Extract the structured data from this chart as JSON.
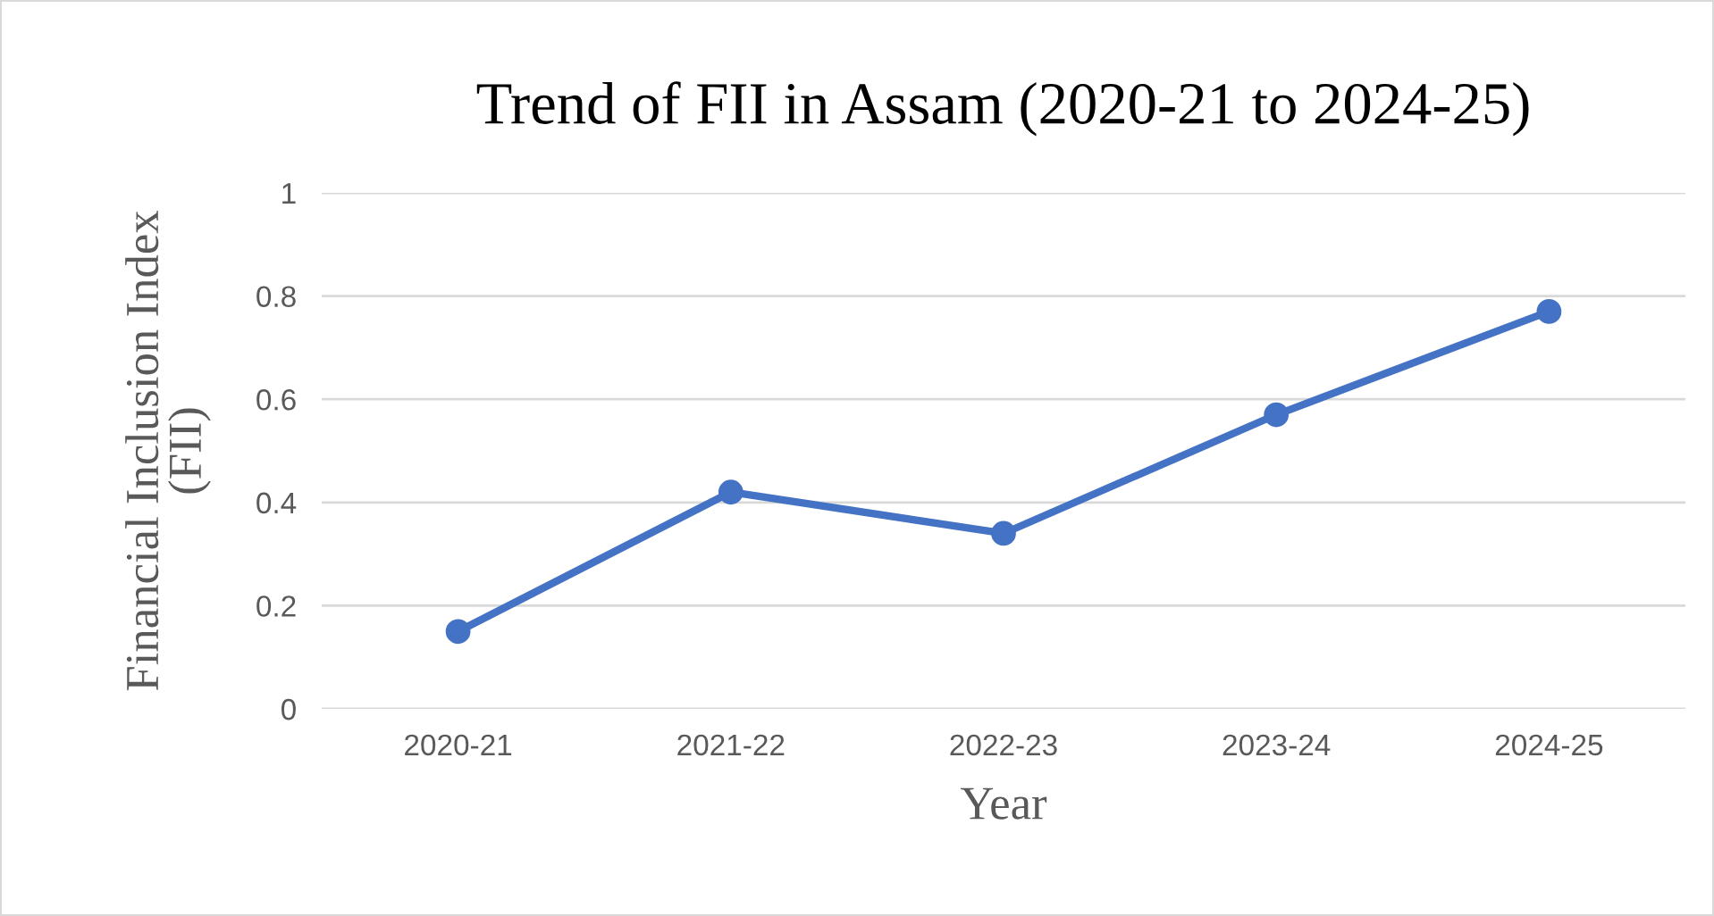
{
  "chart_data": {
    "type": "line",
    "title": "Trend of FII in Assam (2020-21 to 2024-25)",
    "xlabel": "Year",
    "ylabel": "Financial Inclusion Index (FII)",
    "categories": [
      "2020-21",
      "2021-22",
      "2022-23",
      "2023-24",
      "2024-25"
    ],
    "series": [
      {
        "color": "#4472c4",
        "values": [
          0.15,
          0.42,
          0.34,
          0.57,
          0.77
        ]
      }
    ],
    "ylim": [
      0,
      1
    ],
    "yticks": [
      0,
      {
        "value": 0.2,
        "label": "0.2"
      },
      {
        "value": 0.4,
        "label": "0.4"
      },
      {
        "value": 0.6,
        "label": "0.6"
      },
      {
        "value": 0.8,
        "label": "0.8"
      },
      1
    ],
    "grid": "y",
    "marker": "circle",
    "line_style": "solid"
  }
}
